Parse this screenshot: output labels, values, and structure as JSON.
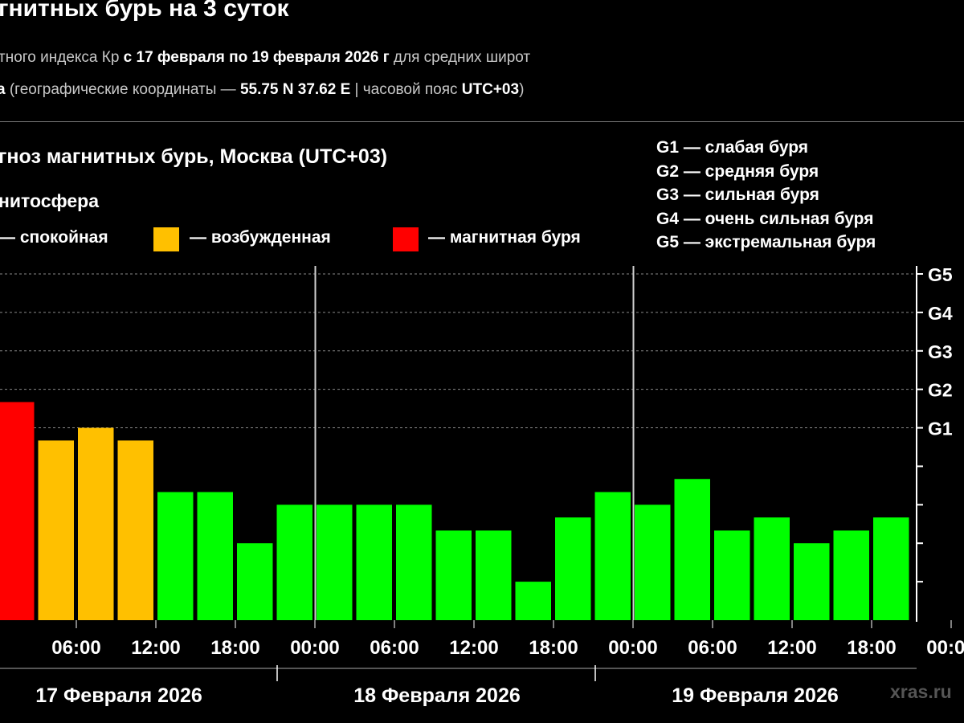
{
  "header": {
    "title": "гнитных бурь на 3 суток",
    "subtitle1": {
      "prefix": "тного индекса Кр ",
      "range": "с 17 февраля по 19 февраля 2026 г",
      "suffix": " для средних широт"
    },
    "subtitle2": {
      "place": "а",
      "prefix": " (географические координаты — ",
      "coords": "55.75 N 37.62 E",
      "middle": " | часовой пояс ",
      "tz": "UTC+03",
      "suffix": ")"
    }
  },
  "legend": {
    "magnetosphere_label": "нитосфера",
    "items": [
      {
        "label": "— спокойная",
        "color": "#00ff00"
      },
      {
        "label": "— возбужденная",
        "color": "#ffc000"
      },
      {
        "label": "— магнитная буря",
        "color": "#ff0000"
      }
    ],
    "g_scale": [
      "G1 — слабая буря",
      "G2 — средняя буря",
      "G3 — сильная буря",
      "G4 — очень сильная буря",
      "G5 — экстремальная буря"
    ]
  },
  "watermark": "xras.ru",
  "colors": {
    "quiet": "#00ff00",
    "active": "#ffc000",
    "storm": "#ff0000",
    "background": "#000000"
  },
  "chart_data": {
    "type": "bar",
    "title": "гноз магнитных бурь, Москва (UTC+03)",
    "ylim": [
      0,
      9
    ],
    "y_tick_labels": [
      {
        "value": 5,
        "label": "G1"
      },
      {
        "value": 6,
        "label": "G2"
      },
      {
        "value": 7,
        "label": "G3"
      },
      {
        "value": 8,
        "label": "G4"
      },
      {
        "value": 9,
        "label": "G5"
      }
    ],
    "x_tick_labels": [
      "06:00",
      "12:00",
      "18:00",
      "00:00",
      "06:00",
      "12:00",
      "18:00",
      "00:00",
      "06:00",
      "12:00",
      "18:00",
      "00:00"
    ],
    "day_labels": [
      "17 Февраля 2026",
      "18 Февраля 2026",
      "19 Февраля 2026"
    ],
    "interval_hours": 3,
    "values": [
      5.67,
      4.67,
      5.0,
      4.67,
      3.33,
      3.33,
      2.0,
      3.0,
      3.0,
      3.0,
      3.0,
      2.33,
      2.33,
      1.0,
      2.67,
      3.33,
      3.0,
      3.67,
      2.33,
      2.67,
      2.0,
      2.33,
      2.67
    ],
    "colors": [
      "#ff0000",
      "#ffc000",
      "#ffc000",
      "#ffc000",
      "#00ff00",
      "#00ff00",
      "#00ff00",
      "#00ff00",
      "#00ff00",
      "#00ff00",
      "#00ff00",
      "#00ff00",
      "#00ff00",
      "#00ff00",
      "#00ff00",
      "#00ff00",
      "#00ff00",
      "#00ff00",
      "#00ff00",
      "#00ff00",
      "#00ff00",
      "#00ff00",
      "#00ff00"
    ]
  }
}
